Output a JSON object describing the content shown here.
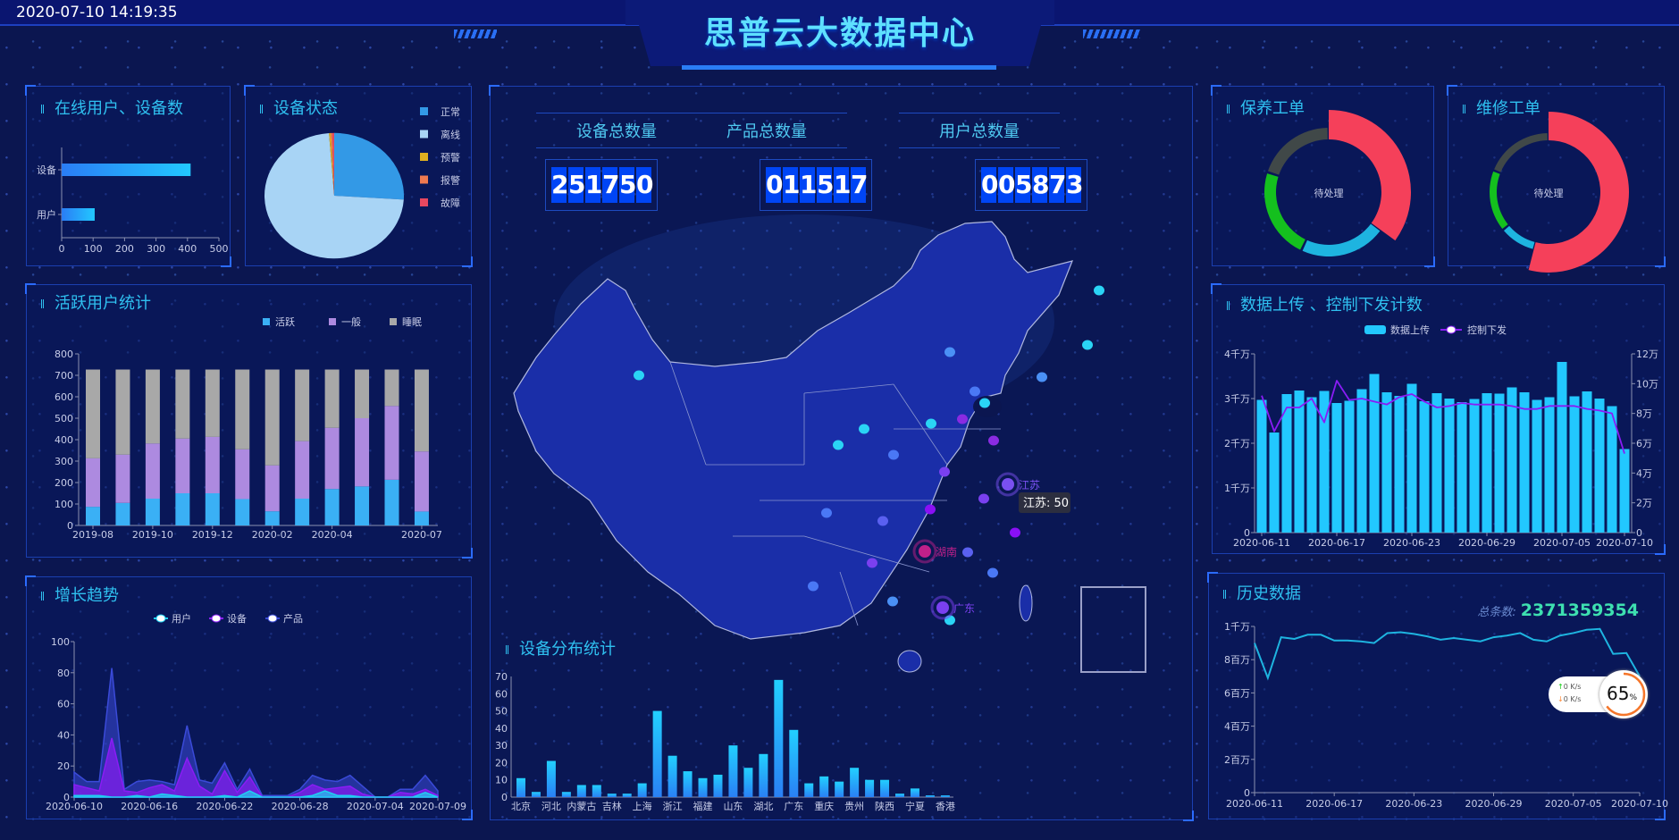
{
  "header": {
    "datetime": "2020-07-10 14:19:35",
    "title": "思普云大数据中心"
  },
  "panels": {
    "online": {
      "title": "在线用户、设备数"
    },
    "device_status": {
      "title": "设备状态"
    },
    "active_users": {
      "title": "活跃用户统计"
    },
    "growth": {
      "title": "增长趋势"
    },
    "distribution": {
      "title": "设备分布统计"
    },
    "maintenance": {
      "title": "保养工单",
      "center_label": "待处理"
    },
    "repair": {
      "title": "维修工单",
      "center_label": "待处理"
    },
    "upload": {
      "title": "数据上传 、控制下发计数"
    },
    "history": {
      "title": "历史数据",
      "total_label": "总条数:",
      "total_value": "2371359354"
    }
  },
  "counters": [
    {
      "label": "设备总数量",
      "digits": "251750"
    },
    {
      "label": "产品总数量",
      "digits": "011517"
    },
    {
      "label": "用户总数量",
      "digits": "005873"
    }
  ],
  "map": {
    "highlight_labels": [
      "江苏",
      "湖南",
      "广东"
    ],
    "tooltip": "江苏: 50"
  },
  "net_widget": {
    "up": "0",
    "down": "0",
    "unit": "K/s",
    "percent": "65",
    "percent_sign": "%"
  },
  "colors": {
    "accent": "#2fc0f0",
    "bar": "#22c8ff",
    "purple": "#8a1cf5",
    "red": "#f5405a",
    "green": "#14c01e",
    "gray": "#404848",
    "cyan": "#1eb4e0"
  },
  "chart_data": [
    {
      "id": "online",
      "type": "bar",
      "orientation": "horizontal",
      "categories": [
        "设备",
        "用户"
      ],
      "values": [
        410,
        105
      ],
      "xlim": [
        0,
        500
      ],
      "xticks": [
        "0",
        "100",
        "200",
        "300",
        "400",
        "500"
      ]
    },
    {
      "id": "device_status",
      "type": "pie",
      "categories": [
        "正常",
        "离线",
        "预警",
        "报警",
        "故障"
      ],
      "values": [
        26,
        72.8,
        0.4,
        0.4,
        0.4
      ],
      "colors": [
        "#3399e6",
        "#a8d4f5",
        "#e0b020",
        "#f07a50",
        "#e84860"
      ],
      "legend": "right"
    },
    {
      "id": "active_users",
      "type": "bar",
      "stacked": true,
      "categories": [
        "2019-08",
        "2019-09",
        "2019-10",
        "2019-11",
        "2019-12",
        "2020-01",
        "2020-02",
        "2020-03",
        "2020-04",
        "2020-05",
        "2020-06",
        "2020-07"
      ],
      "xtick_labels": [
        "2019-08",
        "",
        "2019-10",
        "",
        "2019-12",
        "",
        "2020-02",
        "",
        "2020-04",
        "",
        "",
        "2020-07"
      ],
      "ylim": [
        0,
        800
      ],
      "yticks": [
        "0",
        "100",
        "200",
        "300",
        "400",
        "500",
        "600",
        "700",
        "800"
      ],
      "legend": "top-right",
      "series": [
        {
          "name": "活跃",
          "color": "#3ab0f5",
          "values": [
            87,
            105,
            125,
            150,
            150,
            123,
            66,
            125,
            170,
            182,
            213,
            65
          ]
        },
        {
          "name": "一般",
          "color": "#ad8ae0",
          "values": [
            226,
            225,
            257,
            255,
            263,
            232,
            214,
            268,
            285,
            318,
            344,
            280
          ]
        },
        {
          "name": "睡眠",
          "color": "#a8a8a8",
          "values": [
            414,
            397,
            345,
            322,
            314,
            372,
            447,
            334,
            272,
            227,
            170,
            382
          ]
        }
      ]
    },
    {
      "id": "growth",
      "type": "area",
      "x_start": "2020-06-10",
      "x_end": "2020-07-09",
      "xtick_labels": [
        "2020-06-10",
        "2020-06-16",
        "2020-06-22",
        "2020-06-28",
        "2020-07-04",
        "2020-07-09"
      ],
      "ylim": [
        0,
        100
      ],
      "yticks": [
        "0",
        "20",
        "40",
        "60",
        "80",
        "100"
      ],
      "legend": "top",
      "series": [
        {
          "name": "用户",
          "color": "#1ed0f0",
          "values": [
            1,
            1,
            1,
            0,
            0,
            1,
            0,
            2,
            1,
            0,
            0,
            0,
            1,
            0,
            4,
            0,
            0,
            0,
            0,
            1,
            4,
            1,
            1,
            0,
            0,
            0,
            0,
            0,
            3,
            0
          ]
        },
        {
          "name": "设备",
          "color": "#8a1cf5",
          "values": [
            8,
            6,
            4,
            38,
            4,
            3,
            6,
            8,
            4,
            25,
            7,
            2,
            17,
            3,
            13,
            0,
            0,
            0,
            3,
            8,
            5,
            6,
            7,
            2,
            0,
            0,
            3,
            2,
            5,
            1
          ]
        },
        {
          "name": "产品",
          "color": "#3a4ad8",
          "values": [
            16,
            10,
            10,
            83,
            5,
            10,
            11,
            10,
            8,
            46,
            11,
            9,
            22,
            5,
            18,
            1,
            1,
            1,
            5,
            14,
            11,
            10,
            14,
            7,
            0,
            0,
            5,
            5,
            14,
            4
          ]
        }
      ]
    },
    {
      "id": "distribution",
      "type": "bar",
      "categories": [
        "北京",
        "",
        "河北",
        "",
        "内蒙古",
        "",
        "吉林",
        "",
        "上海",
        "",
        "浙江",
        "",
        "福建",
        "",
        "山东",
        "",
        "湖北",
        "",
        "广东",
        "",
        "重庆",
        "",
        "贵州",
        "",
        "陕西",
        "",
        "宁夏",
        "",
        "香港"
      ],
      "values": [
        11,
        3,
        21,
        3,
        7,
        7,
        2,
        2,
        8,
        50,
        24,
        15,
        11,
        13,
        30,
        17,
        25,
        68,
        39,
        8,
        12,
        9,
        17,
        10,
        10,
        2,
        5,
        1,
        1
      ],
      "ylim": [
        0,
        70
      ],
      "yticks": [
        "0",
        "10",
        "20",
        "30",
        "40",
        "50",
        "60",
        "70"
      ]
    },
    {
      "id": "maintenance",
      "type": "pie",
      "donut": true,
      "values": [
        35,
        22,
        23,
        20
      ],
      "colors": [
        "#f5405a",
        "#1eb4e0",
        "#14c01e",
        "#404848"
      ]
    },
    {
      "id": "repair",
      "type": "pie",
      "donut": true,
      "values": [
        54,
        10,
        17,
        19
      ],
      "colors": [
        "#f5405a",
        "#1eb4e0",
        "#14c01e",
        "#404848"
      ]
    },
    {
      "id": "upload",
      "type": "bar+line",
      "x_start": "2020-06-11",
      "x_end": "2020-07-10",
      "xtick_labels": [
        "2020-06-11",
        "2020-06-17",
        "2020-06-23",
        "2020-06-29",
        "2020-07-05",
        "2020-07-10"
      ],
      "legend": "top",
      "yticks_left": [
        "0",
        "1千万",
        "2千万",
        "3千万",
        "4千万"
      ],
      "ylim_left": [
        0,
        4
      ],
      "ylim_left_unit": "千万",
      "yticks_right": [
        "0",
        "2万",
        "4万",
        "6万",
        "8万",
        "10万",
        "12万"
      ],
      "ylim_right": [
        0,
        12
      ],
      "ylim_right_unit": "万",
      "series": [
        {
          "name": "数据上传",
          "type": "bar",
          "axis": "left",
          "color": "#22c8ff",
          "values": [
            2.97,
            2.24,
            3.1,
            3.18,
            3.03,
            3.17,
            2.9,
            2.95,
            3.21,
            3.55,
            3.14,
            3.06,
            3.33,
            2.94,
            3.12,
            3.0,
            2.92,
            2.99,
            3.12,
            3.11,
            3.25,
            3.14,
            2.97,
            3.03,
            3.82,
            3.05,
            3.16,
            3.0,
            2.83,
            1.87
          ]
        },
        {
          "name": "控制下发",
          "type": "line",
          "axis": "right",
          "color": "#8a1cf5",
          "values": [
            9.2,
            6.8,
            8.4,
            8.4,
            9.0,
            7.4,
            10.2,
            8.9,
            9.0,
            8.8,
            8.6,
            9.1,
            9.3,
            8.8,
            8.4,
            8.5,
            8.7,
            8.6,
            8.6,
            8.6,
            8.5,
            8.3,
            8.3,
            8.5,
            8.5,
            8.5,
            8.3,
            8.2,
            8.0,
            5.3
          ]
        }
      ]
    },
    {
      "id": "history",
      "type": "line",
      "x_start": "2020-06-11",
      "x_end": "2020-07-10",
      "xtick_labels": [
        "2020-06-11",
        "2020-06-17",
        "2020-06-23",
        "2020-06-29",
        "2020-07-05",
        "2020-07-10"
      ],
      "ylim": [
        0,
        10
      ],
      "y_unit": "百万",
      "yticks": [
        "0",
        "2百万",
        "4百万",
        "6百万",
        "8百万",
        "1千万"
      ],
      "series": [
        {
          "color": "#1eb4e0",
          "values": [
            9.0,
            6.9,
            9.35,
            9.25,
            9.5,
            9.5,
            9.15,
            9.15,
            9.1,
            9.0,
            9.6,
            9.65,
            9.55,
            9.4,
            9.2,
            9.3,
            9.2,
            9.1,
            9.35,
            9.45,
            9.6,
            9.2,
            9.1,
            9.45,
            9.6,
            9.8,
            9.85,
            8.35,
            8.4,
            7.0
          ]
        }
      ]
    }
  ]
}
